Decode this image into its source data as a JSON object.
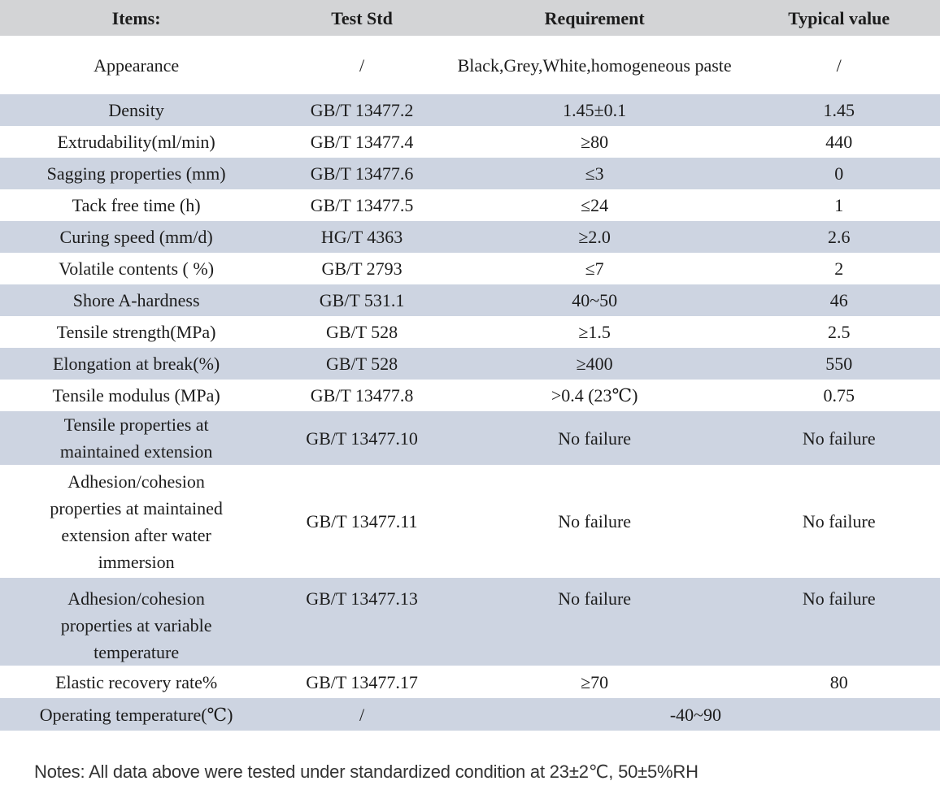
{
  "colors": {
    "header_bg": "#d3d4d6",
    "shaded_row_bg": "#cdd4e1",
    "text": "#1c1c1c"
  },
  "header": {
    "items": "Items:",
    "test_std": "Test Std",
    "requirement": "Requirement",
    "typical_value": "Typical value"
  },
  "rows": [
    {
      "item": "Appearance",
      "std": "/",
      "req": "Black,Grey,White,homogeneous paste",
      "typ": "/"
    },
    {
      "item": "Density",
      "std": "GB/T 13477.2",
      "req": "1.45±0.1",
      "typ": "1.45"
    },
    {
      "item": "Extrudability(ml/min)",
      "std": "GB/T 13477.4",
      "req": "≥80",
      "typ": "440"
    },
    {
      "item": "Sagging properties (mm)",
      "std": "GB/T 13477.6",
      "req": "≤3",
      "typ": "0"
    },
    {
      "item": "Tack free time (h)",
      "std": "GB/T 13477.5",
      "req": "≤24",
      "typ": "1"
    },
    {
      "item": "Curing speed (mm/d)",
      "std": "HG/T 4363",
      "req": "≥2.0",
      "typ": "2.6"
    },
    {
      "item": "Volatile contents ( %)",
      "std": "GB/T 2793",
      "req": "≤7",
      "typ": "2"
    },
    {
      "item": "Shore A-hardness",
      "std": "GB/T 531.1",
      "req": "40～50",
      "typ": "46"
    },
    {
      "item": "Tensile strength(MPa)",
      "std": "GB/T 528",
      "req": "≥1.5",
      "typ": "2.5"
    },
    {
      "item": "Elongation at break(%)",
      "std": "GB/T 528",
      "req": "≥400",
      "typ": "550"
    },
    {
      "item": "Tensile modulus（MPa）",
      "std": "GB/T 13477.8",
      "req": "＞0.4（23℃）",
      "typ": "0.75"
    },
    {
      "item": "Tensile properties at maintained extension",
      "std": "GB/T 13477.10",
      "req": "No failure",
      "typ": "No failure"
    },
    {
      "item": "Adhesion/cohesion properties at maintained extension after water immersion",
      "std": "GB/T 13477.11",
      "req": "No failure",
      "typ": "No failure"
    },
    {
      "item": "Adhesion/cohesion properties at variable temperature",
      "std": "GB/T 13477.13",
      "req": "No failure",
      "typ": "No failure"
    },
    {
      "item": "Elastic recovery rate%",
      "std": "GB/T 13477.17",
      "req": "≥70",
      "typ": "80"
    },
    {
      "item": "Operating temperature(℃)",
      "std": "/",
      "req": "-40~90",
      "typ": ""
    }
  ],
  "notes": "Notes: All data above were tested under standardized condition at 23±2℃、50±5%RH"
}
